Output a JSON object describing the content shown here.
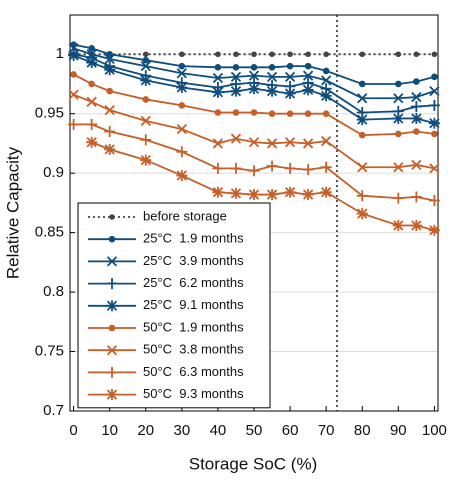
{
  "chart_data": {
    "type": "line",
    "x_label": "Storage SoC (%)",
    "y_label": "Relative Capacity",
    "x": [
      0,
      5,
      10,
      20,
      30,
      40,
      45,
      50,
      55,
      60,
      65,
      70,
      80,
      90,
      95,
      100
    ],
    "xlim": [
      -1,
      101
    ],
    "ylim": [
      0.7,
      1.033
    ],
    "xticks": [
      0,
      10,
      20,
      30,
      40,
      50,
      60,
      70,
      80,
      90,
      100
    ],
    "yticks": [
      0.7,
      0.75,
      0.8,
      0.85,
      0.9,
      0.95,
      1
    ],
    "grid": true,
    "legend": "lower left",
    "vline": 73,
    "series": [
      {
        "name": "before storage",
        "color": "#444444",
        "marker": "dot",
        "dash": true,
        "values": [
          1,
          1,
          1,
          1,
          1,
          1,
          1,
          1,
          1,
          1,
          1,
          1,
          1,
          1,
          1,
          1
        ]
      },
      {
        "name": "25°C  1.9 months",
        "color": "#0f4d7d",
        "marker": "o",
        "values": [
          1.008,
          1.005,
          1.0,
          0.995,
          0.99,
          0.989,
          0.989,
          0.989,
          0.989,
          0.99,
          0.99,
          0.986,
          0.975,
          0.975,
          0.977,
          0.981
        ]
      },
      {
        "name": "25°C  3.9 months",
        "color": "#0f4d7d",
        "marker": "x",
        "values": [
          1.005,
          1.0,
          0.996,
          0.99,
          0.984,
          0.98,
          0.981,
          0.982,
          0.981,
          0.981,
          0.982,
          0.978,
          0.963,
          0.963,
          0.964,
          0.969
        ]
      },
      {
        "name": "25°C  6.2 months",
        "color": "#0f4d7d",
        "marker": "+",
        "values": [
          1.0,
          0.997,
          0.99,
          0.982,
          0.976,
          0.972,
          0.975,
          0.976,
          0.974,
          0.973,
          0.976,
          0.971,
          0.951,
          0.952,
          0.956,
          0.957
        ]
      },
      {
        "name": "25°C  9.1 months",
        "color": "#0f4d7d",
        "marker": "*",
        "values": [
          0.999,
          0.993,
          0.987,
          0.978,
          0.972,
          0.968,
          0.969,
          0.971,
          0.969,
          0.967,
          0.97,
          0.965,
          0.945,
          0.946,
          0.946,
          0.942
        ]
      },
      {
        "name": "50°C  1.9 months",
        "color": "#c65f28",
        "marker": "o",
        "values": [
          0.983,
          0.975,
          0.969,
          0.962,
          0.957,
          0.951,
          0.951,
          0.951,
          0.95,
          0.95,
          0.95,
          0.95,
          0.932,
          0.933,
          0.935,
          0.933
        ]
      },
      {
        "name": "50°C  3.8 months",
        "color": "#c65f28",
        "marker": "x",
        "values": [
          0.966,
          0.96,
          0.953,
          0.944,
          0.937,
          0.925,
          0.929,
          0.926,
          0.925,
          0.926,
          0.925,
          0.927,
          0.905,
          0.905,
          0.907,
          0.904
        ]
      },
      {
        "name": "50°C  6.3 months",
        "color": "#c65f28",
        "marker": "+",
        "values": [
          0.941,
          0.941,
          0.935,
          0.928,
          0.918,
          0.904,
          0.904,
          0.902,
          0.906,
          0.904,
          0.903,
          0.905,
          0.881,
          0.879,
          0.88,
          0.877
        ]
      },
      {
        "name": "50°C  9.3 months",
        "color": "#c65f28",
        "marker": "*",
        "values": [
          null,
          0.926,
          0.92,
          0.911,
          0.898,
          0.884,
          0.883,
          0.882,
          0.882,
          0.884,
          0.882,
          0.884,
          0.866,
          0.856,
          0.856,
          0.852
        ]
      }
    ]
  }
}
